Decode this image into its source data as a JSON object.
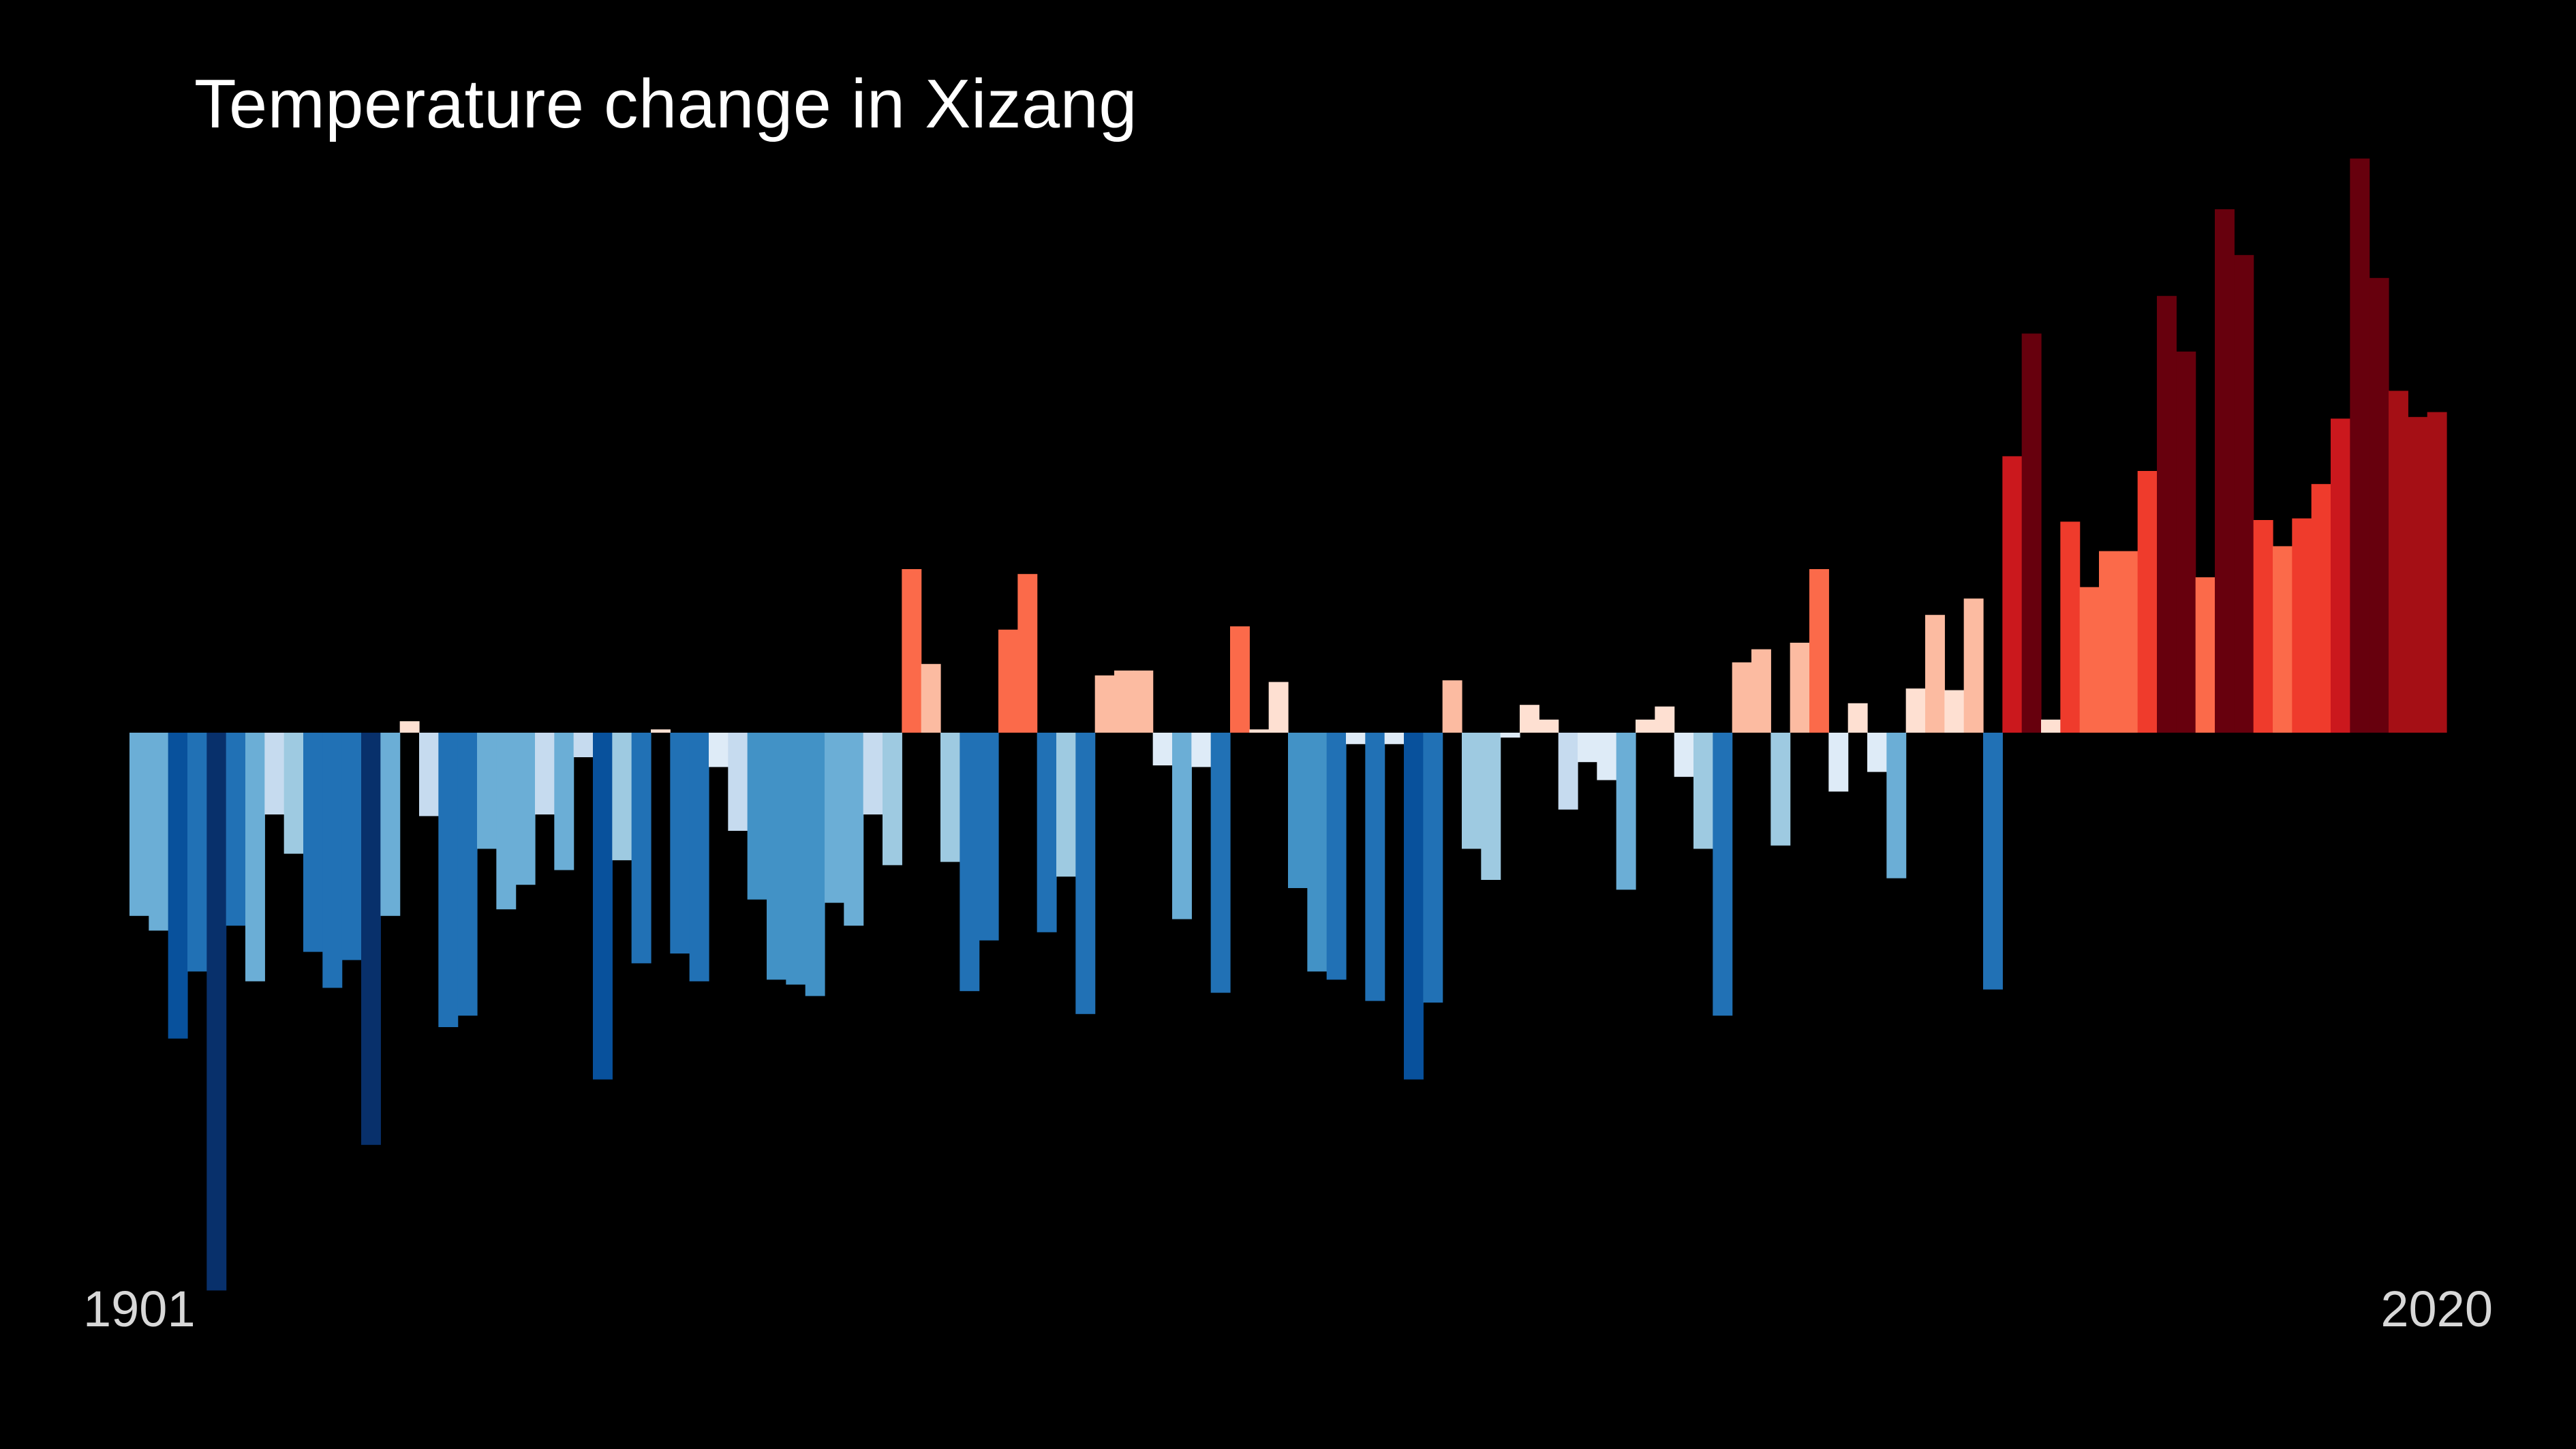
{
  "chart_data": {
    "type": "bar",
    "title": "Temperature change in Xizang",
    "xlabel": "",
    "ylabel": "",
    "start_label": "1901",
    "end_label": "2020",
    "x": [
      1901,
      1902,
      1903,
      1904,
      1905,
      1906,
      1907,
      1908,
      1909,
      1910,
      1911,
      1912,
      1913,
      1914,
      1915,
      1916,
      1917,
      1918,
      1919,
      1920,
      1921,
      1922,
      1923,
      1924,
      1925,
      1926,
      1927,
      1928,
      1929,
      1930,
      1931,
      1932,
      1933,
      1934,
      1935,
      1936,
      1937,
      1938,
      1939,
      1940,
      1941,
      1942,
      1943,
      1944,
      1945,
      1946,
      1947,
      1948,
      1949,
      1950,
      1951,
      1952,
      1953,
      1954,
      1955,
      1956,
      1957,
      1958,
      1959,
      1960,
      1961,
      1962,
      1963,
      1964,
      1965,
      1966,
      1967,
      1968,
      1969,
      1970,
      1971,
      1972,
      1973,
      1974,
      1975,
      1976,
      1977,
      1978,
      1979,
      1980,
      1981,
      1982,
      1983,
      1984,
      1985,
      1986,
      1987,
      1988,
      1989,
      1990,
      1991,
      1992,
      1993,
      1994,
      1995,
      1996,
      1997,
      1998,
      1999,
      2000,
      2001,
      2002,
      2003,
      2004,
      2005,
      2006,
      2007,
      2008,
      2009,
      2010,
      2011,
      2012,
      2013,
      2014,
      2015,
      2016,
      2017,
      2018,
      2019,
      2020
    ],
    "values": [
      -1.12,
      -1.21,
      -1.87,
      -1.46,
      -3.41,
      -1.18,
      -1.52,
      -0.5,
      -0.74,
      -1.34,
      -1.56,
      -1.39,
      -2.52,
      -1.12,
      0.07,
      -0.51,
      -1.8,
      -1.73,
      -0.71,
      -1.08,
      -0.93,
      -0.5,
      -0.84,
      -0.15,
      -2.12,
      -0.78,
      -1.41,
      0.02,
      -1.35,
      -1.52,
      -0.21,
      -0.6,
      -1.02,
      -1.51,
      -1.54,
      -1.61,
      -1.04,
      -1.18,
      -0.5,
      -0.81,
      1.0,
      0.42,
      -0.79,
      -1.58,
      -1.27,
      0.63,
      0.97,
      -1.22,
      -0.88,
      -1.72,
      0.35,
      0.38,
      0.38,
      -0.2,
      -1.14,
      -0.21,
      -1.59,
      0.65,
      0.02,
      0.31,
      -0.95,
      -1.46,
      -1.51,
      -0.07,
      -1.64,
      -0.07,
      -2.12,
      -1.65,
      0.32,
      -0.71,
      -0.9,
      -0.03,
      0.17,
      0.08,
      -0.47,
      -0.18,
      -0.29,
      -0.96,
      0.08,
      0.16,
      -0.27,
      -0.71,
      -1.73,
      0.43,
      0.51,
      -0.69,
      0.55,
      1.0,
      -0.36,
      0.18,
      -0.24,
      -0.89,
      0.27,
      0.72,
      0.26,
      0.82,
      -1.57,
      1.69,
      2.44,
      0.08,
      1.29,
      0.89,
      1.11,
      1.11,
      1.6,
      2.67,
      2.33,
      0.95,
      3.2,
      2.92,
      1.3,
      1.14,
      1.31,
      1.52,
      1.92,
      3.51,
      2.78,
      2.09,
      1.93,
      1.96
    ],
    "bar_colors": [
      "#6baed6",
      "#6baed6",
      "#08519c",
      "#2171b5",
      "#08306b",
      "#2171b5",
      "#6baed6",
      "#c6dbef",
      "#9ecae1",
      "#2171b5",
      "#2171b5",
      "#2171b5",
      "#08306b",
      "#6baed6",
      "#fee0d2",
      "#c6dbef",
      "#2171b5",
      "#2171b5",
      "#6baed6",
      "#6baed6",
      "#6baed6",
      "#c6dbef",
      "#6baed6",
      "#c6dbef",
      "#08519c",
      "#9ecae1",
      "#2171b5",
      "#fee0d2",
      "#2171b5",
      "#2171b5",
      "#deebf7",
      "#c6dbef",
      "#4292c6",
      "#4292c6",
      "#4292c6",
      "#4292c6",
      "#6baed6",
      "#6baed6",
      "#c6dbef",
      "#9ecae1",
      "#fb6a4a",
      "#fcbba1",
      "#9ecae1",
      "#2171b5",
      "#2171b5",
      "#fb6a4a",
      "#fb6a4a",
      "#2171b5",
      "#9ecae1",
      "#2171b5",
      "#fcbba1",
      "#fcbba1",
      "#fcbba1",
      "#deebf7",
      "#6baed6",
      "#deebf7",
      "#2171b5",
      "#fb6a4a",
      "#fee0d2",
      "#fee0d2",
      "#4292c6",
      "#4292c6",
      "#2171b5",
      "#deebf7",
      "#2171b5",
      "#deebf7",
      "#08519c",
      "#2171b5",
      "#fcbba1",
      "#9ecae1",
      "#9ecae1",
      "#deebf7",
      "#fee0d2",
      "#fee0d2",
      "#c6dbef",
      "#deebf7",
      "#deebf7",
      "#6baed6",
      "#fee0d2",
      "#fee0d2",
      "#deebf7",
      "#9ecae1",
      "#2171b5",
      "#fcbba1",
      "#fcbba1",
      "#9ecae1",
      "#fcbba1",
      "#fb6a4a",
      "#deebf7",
      "#fee0d2",
      "#deebf7",
      "#6baed6",
      "#fee0d2",
      "#fcbba1",
      "#fee0d2",
      "#fcbba1",
      "#2171b5",
      "#cb181d",
      "#67000d",
      "#fee0d2",
      "#ef3b2c",
      "#fb6a4a",
      "#fb6a4a",
      "#fb6a4a",
      "#ef3b2c",
      "#67000d",
      "#67000d",
      "#fb6a4a",
      "#67000d",
      "#67000d",
      "#ef3b2c",
      "#fb6a4a",
      "#ef3b2c",
      "#ef3b2c",
      "#cb181d",
      "#67000d",
      "#67000d",
      "#a50f15",
      "#a50f15",
      "#a50f15"
    ],
    "ylim": [
      -3.6,
      4.0
    ],
    "legend": "none",
    "grid": false
  }
}
